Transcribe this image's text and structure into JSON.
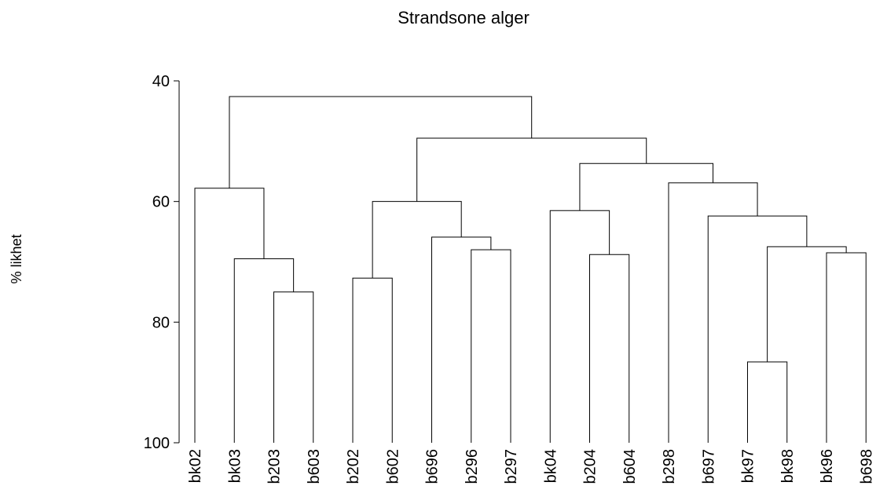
{
  "chart_data": {
    "type": "dendrogram",
    "title": "Strandsone alger",
    "ylabel": "% likhet",
    "categories": [
      "bk02",
      "bk03",
      "b203",
      "b603",
      "b202",
      "b602",
      "b696",
      "b296",
      "b297",
      "bk04",
      "b204",
      "b604",
      "b298",
      "b697",
      "bk97",
      "bk98",
      "bk96",
      "b698"
    ],
    "merges": [
      {
        "children": [
          2,
          3
        ],
        "height": 75
      },
      {
        "children": [
          1,
          18
        ],
        "height": 69.5
      },
      {
        "children": [
          0,
          19
        ],
        "height": 57.8
      },
      {
        "children": [
          4,
          5
        ],
        "height": 72.7
      },
      {
        "children": [
          7,
          8
        ],
        "height": 68
      },
      {
        "children": [
          6,
          22
        ],
        "height": 65.9
      },
      {
        "children": [
          21,
          23
        ],
        "height": 60
      },
      {
        "children": [
          10,
          11
        ],
        "height": 68.8
      },
      {
        "children": [
          9,
          25
        ],
        "height": 61.5
      },
      {
        "children": [
          14,
          15
        ],
        "height": 86.6
      },
      {
        "children": [
          16,
          17
        ],
        "height": 68.5
      },
      {
        "children": [
          27,
          28
        ],
        "height": 67.5
      },
      {
        "children": [
          13,
          29
        ],
        "height": 62.4
      },
      {
        "children": [
          12,
          30
        ],
        "height": 56.9
      },
      {
        "children": [
          26,
          31
        ],
        "height": 53.7
      },
      {
        "children": [
          24,
          32
        ],
        "height": 49.5
      },
      {
        "children": [
          20,
          33
        ],
        "height": 42.6
      }
    ],
    "color": "#000000",
    "ylim": [
      40,
      100
    ],
    "yticks": [
      40,
      60,
      80,
      100
    ]
  }
}
